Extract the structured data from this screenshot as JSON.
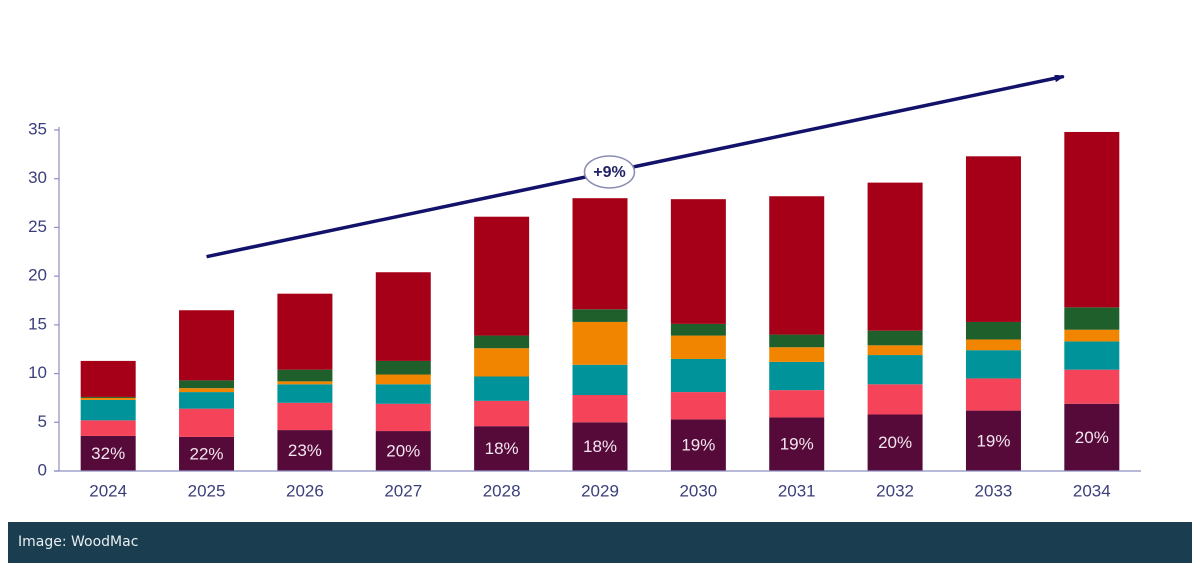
{
  "chart_data": {
    "type": "bar",
    "stacked": true,
    "title": "",
    "xlabel": "",
    "ylabel": "",
    "ylim": [
      0,
      35
    ],
    "yticks": [
      0,
      5,
      10,
      15,
      20,
      25,
      30,
      35
    ],
    "grid": false,
    "legend": "none",
    "categories": [
      "2024",
      "2025",
      "2026",
      "2027",
      "2028",
      "2029",
      "2030",
      "2031",
      "2032",
      "2033",
      "2034"
    ],
    "series": [
      {
        "name": "Segment 1 (dark purple)",
        "color": "#560a3a",
        "values": [
          3.6,
          3.5,
          4.2,
          4.1,
          4.6,
          5.0,
          5.3,
          5.5,
          5.8,
          6.2,
          6.9
        ]
      },
      {
        "name": "Segment 2 (pink)",
        "color": "#f5435a",
        "values": [
          1.6,
          2.9,
          2.8,
          2.8,
          2.6,
          2.8,
          2.8,
          2.8,
          3.1,
          3.3,
          3.5
        ]
      },
      {
        "name": "Segment 3 (teal)",
        "color": "#00939a",
        "values": [
          2.1,
          1.7,
          1.9,
          2.0,
          2.5,
          3.1,
          3.4,
          2.9,
          3.0,
          2.9,
          2.9
        ]
      },
      {
        "name": "Segment 4 (orange)",
        "color": "#f28500",
        "values": [
          0.2,
          0.4,
          0.3,
          1.0,
          2.9,
          4.4,
          2.4,
          1.5,
          1.0,
          1.1,
          1.2
        ]
      },
      {
        "name": "Segment 5 (green)",
        "color": "#1e5f2c",
        "values": [
          0.1,
          0.8,
          1.2,
          1.4,
          1.3,
          1.3,
          1.2,
          1.3,
          1.5,
          1.8,
          2.3
        ]
      },
      {
        "name": "Segment 6 (red)",
        "color": "#a50017",
        "values": [
          3.7,
          7.2,
          7.8,
          9.1,
          12.2,
          11.4,
          12.8,
          14.2,
          15.2,
          17.0,
          18.0
        ]
      }
    ],
    "data_labels": [
      "32%",
      "22%",
      "23%",
      "20%",
      "18%",
      "18%",
      "19%",
      "19%",
      "20%",
      "19%",
      "20%"
    ],
    "data_labels_series": "Segment 1 (dark purple)",
    "annotations": [
      {
        "type": "arrow",
        "from": {
          "x": "2025",
          "y": 22
        },
        "to": {
          "x": "2034",
          "y": 40.5
        },
        "color": "#12126b"
      },
      {
        "type": "callout",
        "text": "+9%",
        "shape": "ellipse",
        "on": "arrow"
      }
    ],
    "axis_color": "#8f8fc0"
  },
  "caption": {
    "text": "Image: WoodMac"
  }
}
